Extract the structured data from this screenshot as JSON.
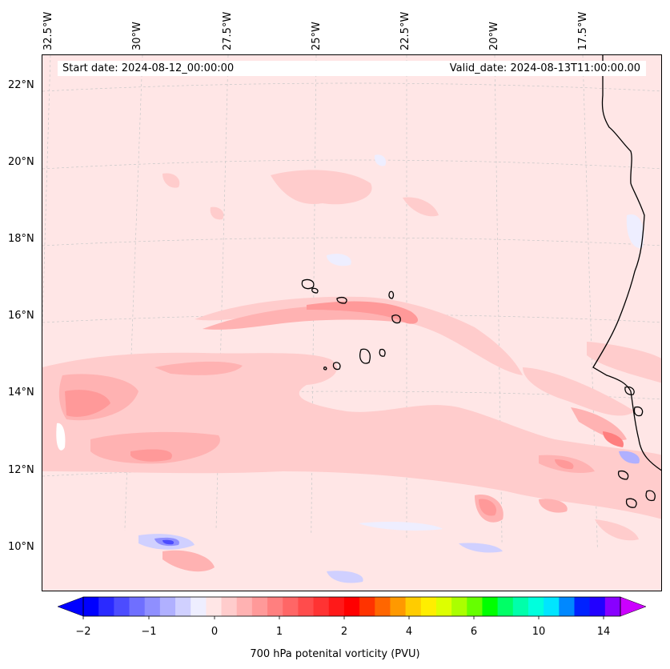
{
  "header": {
    "start_date": "Start date: 2024-08-12_00:00:00",
    "valid_date": "Valid_date: 2024-08-13T11:00:00.00"
  },
  "map": {
    "lon_labels": [
      "32.5°W",
      "30°W",
      "27.5°W",
      "25°W",
      "22.5°W",
      "20°W",
      "17.5°W"
    ],
    "lat_labels": [
      "22°N",
      "20°N",
      "18°N",
      "16°N",
      "14°N",
      "12°N",
      "10°N"
    ],
    "background_color": "#ffe6e6",
    "coastline_color": "#000000"
  },
  "colorbar": {
    "tick_labels": [
      "−2",
      "−1",
      "0",
      "1",
      "2",
      "4",
      "6",
      "10",
      "14"
    ],
    "label": "700 hPa potenital vorticity (PVU)",
    "colors": [
      "#0000ff",
      "#2a2aff",
      "#4c4cff",
      "#6f6fff",
      "#8f8fff",
      "#b0b0ff",
      "#d0d0ff",
      "#eeeeff",
      "#ffe6e6",
      "#ffcccc",
      "#ffb2b2",
      "#ff9999",
      "#ff7f7f",
      "#ff6666",
      "#ff4c4c",
      "#ff3333",
      "#ff1919",
      "#ff0000",
      "#ff3300",
      "#ff6600",
      "#ff9900",
      "#ffcc00",
      "#ffee00",
      "#ddff00",
      "#aaff00",
      "#66ff00",
      "#00ff00",
      "#00ff66",
      "#00ffaa",
      "#00ffdd",
      "#00e5ff",
      "#0088ff",
      "#0022ff",
      "#2200ff",
      "#8800ff"
    ],
    "under_color": "#0000ff",
    "over_color": "#cc00ff"
  }
}
